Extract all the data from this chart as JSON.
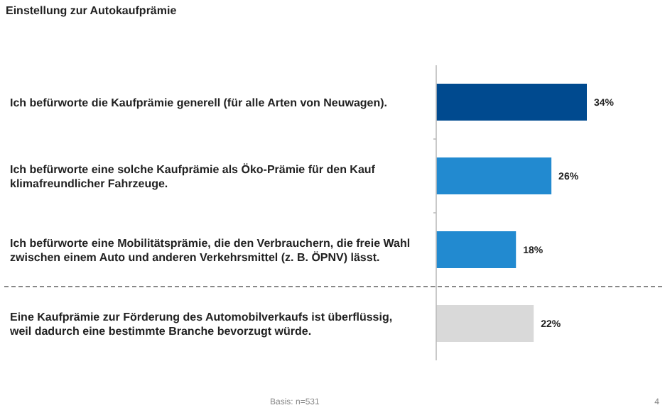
{
  "chart_data": {
    "type": "bar",
    "orientation": "horizontal",
    "title": "Einstellung zur Autokaufprämie",
    "categories": [
      "Ich befürworte die Kaufprämie generell (für alle Arten von Neuwagen).",
      "Ich befürworte eine solche Kaufprämie als Öko-Prämie für den Kauf klimafreundlicher Fahrzeuge.",
      "Ich befürworte eine Mobilitätsprämie, die den Verbrauchern, die freie Wahl zwischen einem Auto und anderen Verkehrsmittel (z. B. ÖPNV) lässt.",
      "Eine Kaufprämie zur Förderung des Automobilverkaufs ist überflüssig, weil dadurch eine bestimmte Branche bevorzugt würde."
    ],
    "values": [
      34,
      26,
      18,
      22
    ],
    "colors": [
      "#004a8f",
      "#228ad0",
      "#228ad0",
      "#d9d9d9"
    ],
    "value_labels": [
      "34%",
      "26%",
      "18%",
      "22%"
    ],
    "annotations": [
      "Basis: n=531",
      "4"
    ]
  }
}
